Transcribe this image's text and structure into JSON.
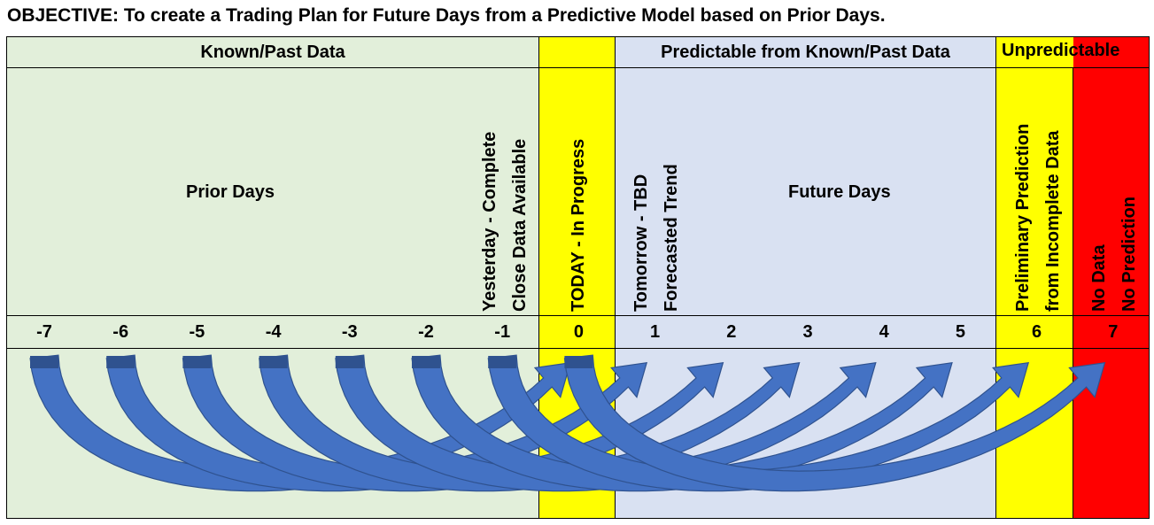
{
  "title": "OBJECTIVE: To create a Trading Plan for Future Days from a Predictive Model based on Prior Days.",
  "header": {
    "known": "Known/Past Data",
    "predictable": "Predictable from Known/Past Data",
    "unpredictable": "Unpredictable"
  },
  "labels": {
    "prior_days": "Prior Days",
    "future_days": "Future Days",
    "yesterday_line1": "Yesterday - Complete",
    "yesterday_line2": "Close Data Available",
    "today": "TODAY - In Progress",
    "tomorrow_line1": "Tomorrow - TBD",
    "tomorrow_line2": "Forecasted Trend",
    "preliminary_line1": "Preliminary Prediction",
    "preliminary_line2": "from Incomplete Data",
    "nodata_line1": "No Data",
    "nodata_line2": "No Prediction"
  },
  "days": [
    "-7",
    "-6",
    "-5",
    "-4",
    "-3",
    "-2",
    "-1",
    "0",
    "1",
    "2",
    "3",
    "4",
    "5",
    "6",
    "7"
  ],
  "arrow_span_days": 7,
  "colors": {
    "known": "#e2efda",
    "today": "#ffff00",
    "predictable": "#d9e1f2",
    "unpredictable": "#ffff00",
    "nodata": "#ff0000",
    "arrow_fill": "#4472c4",
    "arrow_tail": "#2f528f"
  }
}
